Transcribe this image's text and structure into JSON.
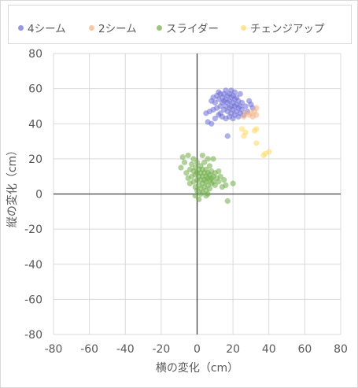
{
  "chart_data": {
    "type": "scatter",
    "xlabel": "横の変化（cm）",
    "ylabel": "縦の変化（cm）",
    "xlim": [
      -80,
      80
    ],
    "ylim": [
      -80,
      80
    ],
    "x_ticks": [
      "-80",
      "-60",
      "-40",
      "-20",
      "0",
      "20",
      "40",
      "60",
      "80"
    ],
    "y_ticks": [
      "80",
      "60",
      "40",
      "20",
      "0",
      "-20",
      "-40",
      "-60",
      "-80"
    ],
    "grid": true,
    "legend_position": "top",
    "series": [
      {
        "name": "4シーム",
        "color": "#6b6bd6",
        "points": [
          [
            8,
            53
          ],
          [
            9,
            55
          ],
          [
            10,
            52
          ],
          [
            11,
            56
          ],
          [
            12,
            54
          ],
          [
            12,
            58
          ],
          [
            13,
            50
          ],
          [
            13,
            57
          ],
          [
            14,
            52
          ],
          [
            14,
            55
          ],
          [
            15,
            48
          ],
          [
            15,
            53
          ],
          [
            15,
            57
          ],
          [
            16,
            50
          ],
          [
            16,
            54
          ],
          [
            16,
            59
          ],
          [
            17,
            47
          ],
          [
            17,
            52
          ],
          [
            17,
            56
          ],
          [
            18,
            44
          ],
          [
            18,
            49
          ],
          [
            18,
            53
          ],
          [
            18,
            57
          ],
          [
            19,
            46
          ],
          [
            19,
            50
          ],
          [
            19,
            55
          ],
          [
            20,
            43
          ],
          [
            20,
            48
          ],
          [
            20,
            52
          ],
          [
            20,
            56
          ],
          [
            21,
            45
          ],
          [
            21,
            50
          ],
          [
            21,
            54
          ],
          [
            22,
            47
          ],
          [
            22,
            51
          ],
          [
            22,
            55
          ],
          [
            23,
            44
          ],
          [
            23,
            49
          ],
          [
            23,
            53
          ],
          [
            24,
            46
          ],
          [
            24,
            50
          ],
          [
            25,
            48
          ],
          [
            25,
            52
          ],
          [
            26,
            45
          ],
          [
            27,
            50
          ],
          [
            28,
            47
          ],
          [
            29,
            53
          ],
          [
            30,
            51
          ],
          [
            31,
            49
          ],
          [
            12,
            45
          ],
          [
            10,
            43
          ],
          [
            8,
            40
          ],
          [
            5,
            46
          ],
          [
            7,
            47
          ],
          [
            9,
            48
          ],
          [
            14,
            44
          ],
          [
            16,
            43
          ],
          [
            11,
            49
          ],
          [
            13,
            46
          ],
          [
            17,
            33
          ],
          [
            19,
            59
          ],
          [
            21,
            58
          ],
          [
            24,
            57
          ],
          [
            6,
            41
          ]
        ]
      },
      {
        "name": "2シーム",
        "color": "#f4b183",
        "points": [
          [
            26,
            44
          ],
          [
            27,
            46
          ],
          [
            30,
            46
          ],
          [
            31,
            44
          ],
          [
            32,
            47
          ],
          [
            33,
            49
          ],
          [
            33,
            45
          ],
          [
            29,
            45
          ]
        ]
      },
      {
        "name": "スライダー",
        "color": "#70ad47",
        "points": [
          [
            -9,
            15
          ],
          [
            -8,
            21
          ],
          [
            -7,
            18
          ],
          [
            -6,
            12
          ],
          [
            -5,
            9
          ],
          [
            -5,
            22
          ],
          [
            -4,
            14
          ],
          [
            -4,
            6
          ],
          [
            -3,
            10
          ],
          [
            -3,
            17
          ],
          [
            -2,
            13
          ],
          [
            -2,
            7
          ],
          [
            -2,
            20
          ],
          [
            -1,
            11
          ],
          [
            -1,
            4
          ],
          [
            -1,
            15
          ],
          [
            0,
            8
          ],
          [
            0,
            12
          ],
          [
            0,
            2
          ],
          [
            0,
            18
          ],
          [
            1,
            10
          ],
          [
            1,
            5
          ],
          [
            1,
            14
          ],
          [
            1,
            -3
          ],
          [
            2,
            8
          ],
          [
            2,
            12
          ],
          [
            2,
            3
          ],
          [
            2,
            16
          ],
          [
            3,
            6
          ],
          [
            3,
            10
          ],
          [
            3,
            1
          ],
          [
            3,
            14
          ],
          [
            3,
            22
          ],
          [
            4,
            8
          ],
          [
            4,
            12
          ],
          [
            4,
            4
          ],
          [
            4,
            18
          ],
          [
            5,
            7
          ],
          [
            5,
            10
          ],
          [
            5,
            2
          ],
          [
            5,
            14
          ],
          [
            6,
            9
          ],
          [
            6,
            5
          ],
          [
            6,
            12
          ],
          [
            6,
            0
          ],
          [
            7,
            8
          ],
          [
            7,
            11
          ],
          [
            7,
            3
          ],
          [
            7,
            16
          ],
          [
            8,
            9
          ],
          [
            8,
            6
          ],
          [
            8,
            13
          ],
          [
            9,
            7
          ],
          [
            9,
            10
          ],
          [
            10,
            5
          ],
          [
            10,
            12
          ],
          [
            11,
            9
          ],
          [
            12,
            7
          ],
          [
            12,
            13
          ],
          [
            13,
            10
          ],
          [
            14,
            4
          ],
          [
            15,
            8
          ],
          [
            16,
            5
          ],
          [
            17,
            -4
          ],
          [
            20,
            6
          ],
          [
            -1,
            -1
          ],
          [
            2,
            0
          ],
          [
            5,
            -1
          ],
          [
            6,
            20
          ],
          [
            9,
            20
          ]
        ]
      },
      {
        "name": "チェンジアップ",
        "color": "#ffd966",
        "points": [
          [
            25,
            37
          ],
          [
            26,
            33
          ],
          [
            27,
            35
          ],
          [
            32,
            36
          ],
          [
            33,
            37
          ],
          [
            33,
            29
          ],
          [
            37,
            22
          ],
          [
            38,
            23
          ],
          [
            40,
            24
          ]
        ]
      }
    ]
  }
}
